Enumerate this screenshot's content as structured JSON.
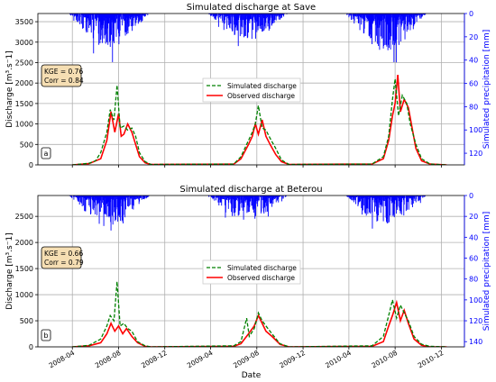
{
  "chart_data": [
    {
      "type": "line",
      "panel_label": "a",
      "title": "Simulated discharge at Save",
      "ylabel": "Discharge [m³.s⁻1]",
      "y2label": "Simulated precipitation [mm]",
      "ylim": [
        0,
        3700
      ],
      "yticks": [
        0,
        500,
        1000,
        1500,
        2000,
        2500,
        3000,
        3500
      ],
      "y2lim": [
        130,
        0
      ],
      "y2ticks": [
        0,
        20,
        40,
        60,
        80,
        100,
        120
      ],
      "y2_inverted": true,
      "xlim": [
        "2008-01-01",
        "2011-01-31"
      ],
      "xticks": [
        "2008-04",
        "2008-08",
        "2008-12",
        "2009-04",
        "2009-08",
        "2009-12",
        "2010-04",
        "2010-08",
        "2010-12"
      ],
      "grid": true,
      "stats": [
        "KGE = 0.76",
        "Corr = 0.84"
      ],
      "legend": {
        "placement": "center",
        "entries": [
          "Simulated discharge",
          "Observed discharge"
        ]
      },
      "series": [
        {
          "name": "Simulated discharge",
          "style": "dashed",
          "color": "#008000",
          "points": [
            [
              "2008-04-01",
              0
            ],
            [
              "2008-05-15",
              40
            ],
            [
              "2008-06-01",
              100
            ],
            [
              "2008-06-15",
              300
            ],
            [
              "2008-07-01",
              800
            ],
            [
              "2008-07-10",
              1350
            ],
            [
              "2008-07-20",
              1100
            ],
            [
              "2008-07-28",
              1950
            ],
            [
              "2008-08-05",
              900
            ],
            [
              "2008-08-15",
              950
            ],
            [
              "2008-08-25",
              850
            ],
            [
              "2008-09-05",
              900
            ],
            [
              "2008-09-15",
              700
            ],
            [
              "2008-09-25",
              300
            ],
            [
              "2008-10-10",
              80
            ],
            [
              "2008-10-25",
              10
            ],
            [
              "2009-06-01",
              20
            ],
            [
              "2009-06-20",
              200
            ],
            [
              "2009-07-10",
              600
            ],
            [
              "2009-07-20",
              800
            ],
            [
              "2009-07-28",
              1000
            ],
            [
              "2009-08-05",
              1450
            ],
            [
              "2009-08-15",
              900
            ],
            [
              "2009-08-25",
              850
            ],
            [
              "2009-09-05",
              650
            ],
            [
              "2009-09-20",
              400
            ],
            [
              "2009-10-05",
              120
            ],
            [
              "2009-10-25",
              10
            ],
            [
              "2010-06-01",
              20
            ],
            [
              "2010-07-01",
              200
            ],
            [
              "2010-07-15",
              700
            ],
            [
              "2010-07-25",
              1600
            ],
            [
              "2010-08-01",
              2100
            ],
            [
              "2010-08-10",
              1200
            ],
            [
              "2010-08-20",
              1700
            ],
            [
              "2010-09-01",
              1500
            ],
            [
              "2010-09-10",
              1000
            ],
            [
              "2010-09-25",
              500
            ],
            [
              "2010-10-10",
              150
            ],
            [
              "2010-11-01",
              20
            ],
            [
              "2010-12-15",
              0
            ]
          ]
        },
        {
          "name": "Observed discharge",
          "style": "solid",
          "color": "#ff0000",
          "points": [
            [
              "2008-04-01",
              0
            ],
            [
              "2008-05-15",
              30
            ],
            [
              "2008-06-15",
              150
            ],
            [
              "2008-07-01",
              600
            ],
            [
              "2008-07-12",
              1300
            ],
            [
              "2008-07-22",
              800
            ],
            [
              "2008-08-01",
              1250
            ],
            [
              "2008-08-08",
              700
            ],
            [
              "2008-08-15",
              750
            ],
            [
              "2008-08-25",
              1000
            ],
            [
              "2008-09-05",
              800
            ],
            [
              "2008-09-15",
              500
            ],
            [
              "2008-09-25",
              200
            ],
            [
              "2008-10-10",
              50
            ],
            [
              "2008-10-25",
              10
            ],
            [
              "2009-06-01",
              20
            ],
            [
              "2009-06-20",
              150
            ],
            [
              "2009-07-10",
              500
            ],
            [
              "2009-07-20",
              700
            ],
            [
              "2009-07-28",
              1000
            ],
            [
              "2009-08-05",
              750
            ],
            [
              "2009-08-15",
              1100
            ],
            [
              "2009-08-25",
              700
            ],
            [
              "2009-09-05",
              500
            ],
            [
              "2009-09-20",
              250
            ],
            [
              "2009-10-05",
              80
            ],
            [
              "2009-10-25",
              10
            ],
            [
              "2010-06-01",
              20
            ],
            [
              "2010-07-01",
              150
            ],
            [
              "2010-07-15",
              600
            ],
            [
              "2010-07-25",
              1200
            ],
            [
              "2010-08-01",
              1500
            ],
            [
              "2010-08-08",
              2200
            ],
            [
              "2010-08-15",
              1300
            ],
            [
              "2010-08-25",
              1600
            ],
            [
              "2010-09-05",
              1400
            ],
            [
              "2010-09-15",
              900
            ],
            [
              "2010-09-25",
              400
            ],
            [
              "2010-10-10",
              100
            ],
            [
              "2010-11-01",
              20
            ],
            [
              "2010-12-15",
              0
            ]
          ]
        }
      ],
      "precip_seasons": [
        [
          "2008-03-20",
          "2008-10-25",
          1.0
        ],
        [
          "2009-03-20",
          "2009-10-25",
          0.75
        ],
        [
          "2010-03-20",
          "2010-10-25",
          1.1
        ]
      ]
    },
    {
      "type": "line",
      "panel_label": "b",
      "title": "Simulated discharge at Beterou",
      "ylabel": "Discharge [m³.s⁻1]",
      "y2label": "Simulated precipitation [mm]",
      "ylim": [
        0,
        2900
      ],
      "yticks": [
        0,
        500,
        1000,
        1500,
        2000,
        2500
      ],
      "y2lim": [
        145,
        0
      ],
      "y2ticks": [
        0,
        20,
        40,
        60,
        80,
        100,
        120,
        140
      ],
      "y2_inverted": true,
      "xlim": [
        "2008-01-01",
        "2011-01-31"
      ],
      "xticks": [
        "2008-04",
        "2008-08",
        "2008-12",
        "2009-04",
        "2009-08",
        "2009-12",
        "2010-04",
        "2010-08",
        "2010-12"
      ],
      "xlabel": "Date",
      "grid": true,
      "stats": [
        "KGE = 0.66",
        "Corr = 0.79"
      ],
      "legend": {
        "placement": "center",
        "entries": [
          "Simulated discharge",
          "Observed discharge"
        ]
      },
      "series": [
        {
          "name": "Simulated discharge",
          "style": "dashed",
          "color": "#008000",
          "points": [
            [
              "2008-04-01",
              0
            ],
            [
              "2008-05-15",
              30
            ],
            [
              "2008-06-15",
              150
            ],
            [
              "2008-07-01",
              400
            ],
            [
              "2008-07-10",
              600
            ],
            [
              "2008-07-20",
              500
            ],
            [
              "2008-07-28",
              1250
            ],
            [
              "2008-08-05",
              400
            ],
            [
              "2008-08-15",
              450
            ],
            [
              "2008-08-25",
              350
            ],
            [
              "2008-09-05",
              300
            ],
            [
              "2008-09-20",
              100
            ],
            [
              "2008-10-10",
              20
            ],
            [
              "2008-10-25",
              0
            ],
            [
              "2009-06-01",
              20
            ],
            [
              "2009-06-20",
              100
            ],
            [
              "2009-07-05",
              550
            ],
            [
              "2009-07-12",
              200
            ],
            [
              "2009-07-25",
              350
            ],
            [
              "2009-08-05",
              650
            ],
            [
              "2009-08-15",
              500
            ],
            [
              "2009-08-25",
              400
            ],
            [
              "2009-09-10",
              250
            ],
            [
              "2009-10-01",
              60
            ],
            [
              "2009-10-25",
              0
            ],
            [
              "2010-06-01",
              20
            ],
            [
              "2010-07-01",
              200
            ],
            [
              "2010-07-15",
              600
            ],
            [
              "2010-07-25",
              900
            ],
            [
              "2010-08-05",
              550
            ],
            [
              "2010-08-15",
              800
            ],
            [
              "2010-08-25",
              650
            ],
            [
              "2010-09-05",
              500
            ],
            [
              "2010-09-20",
              200
            ],
            [
              "2010-10-10",
              50
            ],
            [
              "2010-11-01",
              10
            ],
            [
              "2010-12-15",
              0
            ]
          ]
        },
        {
          "name": "Observed discharge",
          "style": "solid",
          "color": "#ff0000",
          "points": [
            [
              "2008-04-01",
              0
            ],
            [
              "2008-05-15",
              20
            ],
            [
              "2008-06-15",
              80
            ],
            [
              "2008-07-01",
              250
            ],
            [
              "2008-07-12",
              450
            ],
            [
              "2008-07-22",
              300
            ],
            [
              "2008-08-01",
              400
            ],
            [
              "2008-08-12",
              250
            ],
            [
              "2008-08-22",
              350
            ],
            [
              "2008-09-05",
              200
            ],
            [
              "2008-09-20",
              80
            ],
            [
              "2008-10-10",
              10
            ],
            [
              "2008-10-25",
              0
            ],
            [
              "2009-06-01",
              10
            ],
            [
              "2009-06-20",
              60
            ],
            [
              "2009-07-10",
              250
            ],
            [
              "2009-07-25",
              400
            ],
            [
              "2009-08-05",
              600
            ],
            [
              "2009-08-15",
              450
            ],
            [
              "2009-08-25",
              300
            ],
            [
              "2009-09-10",
              200
            ],
            [
              "2009-10-01",
              50
            ],
            [
              "2009-10-25",
              0
            ],
            [
              "2010-06-01",
              10
            ],
            [
              "2010-07-01",
              100
            ],
            [
              "2010-07-15",
              400
            ],
            [
              "2010-07-25",
              600
            ],
            [
              "2010-08-05",
              850
            ],
            [
              "2010-08-15",
              500
            ],
            [
              "2010-08-25",
              700
            ],
            [
              "2010-09-05",
              450
            ],
            [
              "2010-09-20",
              150
            ],
            [
              "2010-10-10",
              30
            ],
            [
              "2010-11-01",
              0
            ],
            [
              "2010-12-15",
              0
            ]
          ]
        }
      ],
      "precip_seasons": [
        [
          "2008-03-20",
          "2008-10-25",
          1.0
        ],
        [
          "2009-03-20",
          "2009-10-25",
          0.8
        ],
        [
          "2010-03-20",
          "2010-10-25",
          0.95
        ]
      ]
    }
  ]
}
